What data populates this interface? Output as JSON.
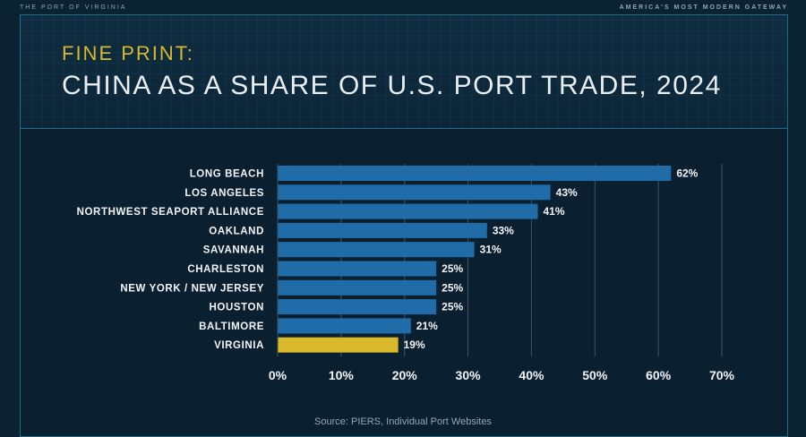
{
  "header": {
    "top_left": "THE PORT OF VIRGINIA",
    "top_right": "AMERICA'S MOST MODERN GATEWAY",
    "kicker": "FINE PRINT:",
    "title": "CHINA AS A SHARE OF U.S. PORT TRADE, 2024"
  },
  "source": "Source: PIERS, Individual Port Websites",
  "colors": {
    "bar": "#1f6ca8",
    "highlight": "#d9b82a",
    "label": "#f2f5f7",
    "grid": "#3a5566"
  },
  "chart_data": {
    "type": "bar",
    "orientation": "horizontal",
    "categories": [
      "LONG BEACH",
      "LOS ANGELES",
      "NORTHWEST SEAPORT ALLIANCE",
      "OAKLAND",
      "SAVANNAH",
      "CHARLESTON",
      "NEW YORK / NEW JERSEY",
      "HOUSTON",
      "BALTIMORE",
      "VIRGINIA"
    ],
    "values": [
      62,
      43,
      41,
      33,
      31,
      25,
      25,
      25,
      21,
      19
    ],
    "value_labels": [
      "62%",
      "43%",
      "41%",
      "33%",
      "31%",
      "25%",
      "25%",
      "25%",
      "21%",
      "19%"
    ],
    "highlight_category": "VIRGINIA",
    "xlim": [
      0,
      70
    ],
    "xticks": [
      0,
      10,
      20,
      30,
      40,
      50,
      60,
      70
    ],
    "xtick_labels": [
      "0%",
      "10%",
      "20%",
      "30%",
      "40%",
      "50%",
      "60%",
      "70%"
    ],
    "grid": true,
    "title": "CHINA AS A SHARE OF U.S. PORT TRADE, 2024",
    "xlabel": "",
    "ylabel": ""
  }
}
